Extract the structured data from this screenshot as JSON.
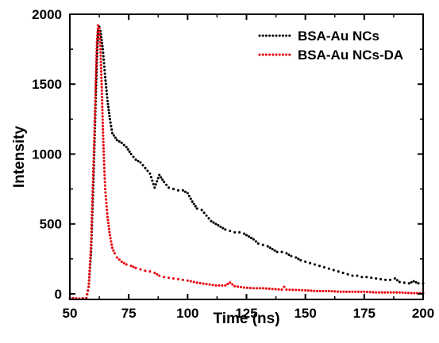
{
  "chart_data": {
    "type": "scatter",
    "xlabel": "Time (ns)",
    "ylabel": "Intensity",
    "xlim": [
      50,
      200
    ],
    "ylim": [
      -40,
      2000
    ],
    "x_ticks": [
      50,
      75,
      100,
      125,
      150,
      175,
      200
    ],
    "y_ticks": [
      0,
      500,
      1000,
      1500,
      2000
    ],
    "legend_position": "top-right",
    "grid": false,
    "series": [
      {
        "name": "BSA-Au NCs",
        "color": "#000000",
        "x": [
          50,
          54,
          57,
          58,
          59,
          60,
          61,
          61.5,
          62,
          62.5,
          63,
          64,
          65,
          66,
          67,
          68,
          70,
          72,
          74,
          76,
          78,
          80,
          82,
          84,
          86,
          88,
          90,
          92,
          94,
          96,
          98,
          100,
          102,
          104,
          106,
          108,
          110,
          112,
          114,
          116,
          118,
          120,
          122,
          124,
          126,
          128,
          130,
          132,
          134,
          136,
          138,
          140,
          142,
          144,
          146,
          148,
          150,
          152,
          154,
          156,
          158,
          160,
          162,
          164,
          166,
          168,
          170,
          172,
          174,
          176,
          178,
          180,
          182,
          184,
          186,
          188,
          190,
          192,
          194,
          196,
          198,
          200
        ],
        "y": [
          -30,
          -35,
          -30,
          50,
          300,
          800,
          1400,
          1700,
          1880,
          1910,
          1880,
          1750,
          1550,
          1380,
          1250,
          1150,
          1100,
          1080,
          1050,
          1000,
          960,
          940,
          900,
          860,
          760,
          850,
          800,
          760,
          750,
          740,
          740,
          720,
          660,
          610,
          600,
          560,
          520,
          500,
          480,
          460,
          450,
          440,
          440,
          430,
          410,
          390,
          360,
          350,
          340,
          320,
          300,
          300,
          290,
          270,
          260,
          240,
          230,
          220,
          210,
          200,
          190,
          180,
          170,
          160,
          150,
          140,
          130,
          130,
          120,
          120,
          115,
          110,
          105,
          100,
          100,
          110,
          85,
          80,
          75,
          90,
          75,
          75
        ]
      },
      {
        "name": "BSA-Au NCs-DA",
        "color": "#e8000b",
        "x": [
          50,
          54,
          57,
          58,
          59,
          60,
          61,
          61.5,
          62,
          62.5,
          63,
          63.5,
          64,
          64.5,
          65,
          66,
          67,
          68,
          69,
          70,
          72,
          74,
          76,
          78,
          80,
          82,
          84,
          86,
          88,
          90,
          92,
          94,
          96,
          98,
          100,
          104,
          108,
          112,
          116,
          118,
          120,
          124,
          128,
          132,
          136,
          140,
          141,
          142,
          146,
          150,
          155,
          160,
          165,
          170,
          175,
          180,
          185,
          190,
          195,
          200
        ],
        "y": [
          -30,
          -35,
          -30,
          50,
          350,
          900,
          1500,
          1800,
          1920,
          1900,
          1750,
          1500,
          1200,
          950,
          750,
          550,
          420,
          330,
          290,
          260,
          230,
          210,
          200,
          185,
          175,
          165,
          160,
          150,
          130,
          120,
          115,
          110,
          105,
          100,
          95,
          80,
          70,
          60,
          60,
          80,
          55,
          45,
          40,
          40,
          35,
          30,
          50,
          30,
          28,
          25,
          20,
          20,
          15,
          15,
          15,
          10,
          10,
          10,
          5,
          5
        ]
      }
    ]
  }
}
